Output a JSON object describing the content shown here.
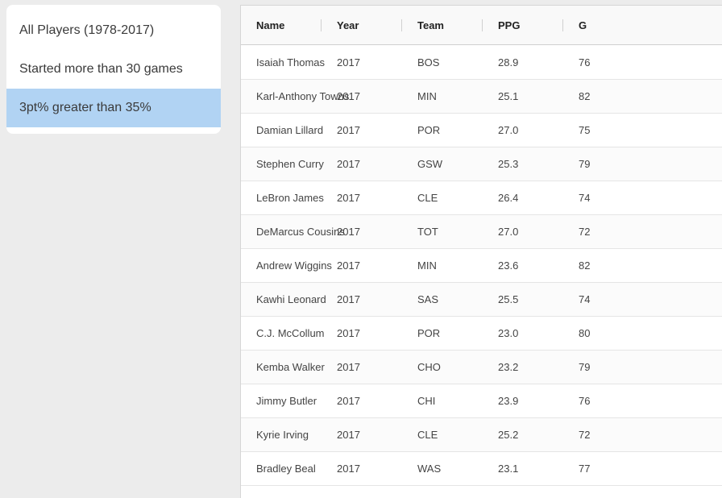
{
  "filters": [
    {
      "label": "All Players (1978-2017)",
      "selected": false
    },
    {
      "label": "Started more than 30 games",
      "selected": false
    },
    {
      "label": "3pt% greater than 35%",
      "selected": true
    }
  ],
  "table": {
    "columns": [
      "Name",
      "Year",
      "Team",
      "PPG",
      "G"
    ],
    "rows": [
      [
        "Isaiah Thomas",
        "2017",
        "BOS",
        "28.9",
        "76"
      ],
      [
        "Karl-Anthony Towns",
        "2017",
        "MIN",
        "25.1",
        "82"
      ],
      [
        "Damian Lillard",
        "2017",
        "POR",
        "27.0",
        "75"
      ],
      [
        "Stephen Curry",
        "2017",
        "GSW",
        "25.3",
        "79"
      ],
      [
        "LeBron James",
        "2017",
        "CLE",
        "26.4",
        "74"
      ],
      [
        "DeMarcus Cousins",
        "2017",
        "TOT",
        "27.0",
        "72"
      ],
      [
        "Andrew Wiggins",
        "2017",
        "MIN",
        "23.6",
        "82"
      ],
      [
        "Kawhi Leonard",
        "2017",
        "SAS",
        "25.5",
        "74"
      ],
      [
        "C.J. McCollum",
        "2017",
        "POR",
        "23.0",
        "80"
      ],
      [
        "Kemba Walker",
        "2017",
        "CHO",
        "23.2",
        "79"
      ],
      [
        "Jimmy Butler",
        "2017",
        "CHI",
        "23.9",
        "76"
      ],
      [
        "Kyrie Irving",
        "2017",
        "CLE",
        "25.2",
        "72"
      ],
      [
        "Bradley Beal",
        "2017",
        "WAS",
        "23.1",
        "77"
      ]
    ]
  },
  "colors": {
    "selected_filter": "#b1d3f3",
    "page_background": "#ececec"
  }
}
